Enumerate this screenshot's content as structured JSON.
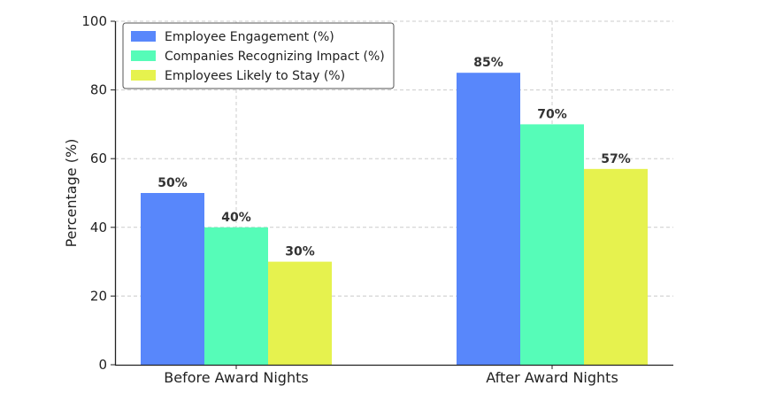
{
  "chart_data": {
    "type": "bar",
    "title": "",
    "xlabel": "",
    "ylabel": "Percentage (%)",
    "ylim": [
      0,
      100
    ],
    "yticks": [
      0,
      20,
      40,
      60,
      80,
      100
    ],
    "grid": true,
    "legend_position": "top-left",
    "categories": [
      "Before Award Nights",
      "After Award Nights"
    ],
    "series": [
      {
        "name": "Employee Engagement (%)",
        "values": [
          50,
          85
        ],
        "labels": [
          "50%",
          "85%"
        ],
        "color": "#5887fb"
      },
      {
        "name": "Companies Recognizing Impact (%)",
        "values": [
          40,
          70
        ],
        "labels": [
          "40%",
          "70%"
        ],
        "color": "#56fcb8"
      },
      {
        "name": "Employees Likely to Stay (%)",
        "values": [
          30,
          57
        ],
        "labels": [
          "30%",
          "57%"
        ],
        "color": "#e6f24e"
      }
    ]
  }
}
